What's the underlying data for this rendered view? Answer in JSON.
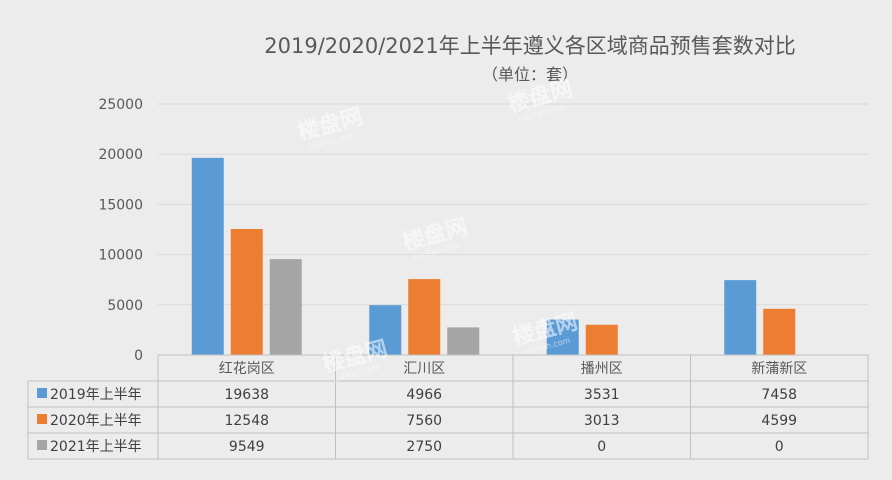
{
  "chart_data": {
    "type": "bar",
    "title": "2019/2020/2021年上半年遵义各区域商品预售套数对比",
    "subtitle": "（单位：套）",
    "categories": [
      "红花岗区",
      "汇川区",
      "播州区",
      "新蒲新区"
    ],
    "series": [
      {
        "name": "2019年上半年",
        "values": [
          19638,
          4966,
          3531,
          7458
        ],
        "color": "#5b9bd5"
      },
      {
        "name": "2020年上半年",
        "values": [
          12548,
          7560,
          3013,
          4599
        ],
        "color": "#ed7d31"
      },
      {
        "name": "2021年上半年",
        "values": [
          9549,
          2750,
          0,
          0
        ],
        "color": "#a5a5a5"
      }
    ],
    "ylim": [
      0,
      25000
    ],
    "yticks": [
      0,
      5000,
      10000,
      15000,
      20000,
      25000
    ],
    "grid": true,
    "legend": "data-table",
    "table": {
      "rows": [
        {
          "label": "2019年上半年",
          "cells": [
            "19638",
            "4966",
            "3531",
            "7458"
          ]
        },
        {
          "label": "2020年上半年",
          "cells": [
            "12548",
            "7560",
            "3013",
            "4599"
          ]
        },
        {
          "label": "2021年上半年",
          "cells": [
            "9549",
            "2750",
            "0",
            "0"
          ]
        }
      ]
    }
  },
  "watermark": {
    "brand": "楼盘网",
    "site": "LouPan.com"
  }
}
